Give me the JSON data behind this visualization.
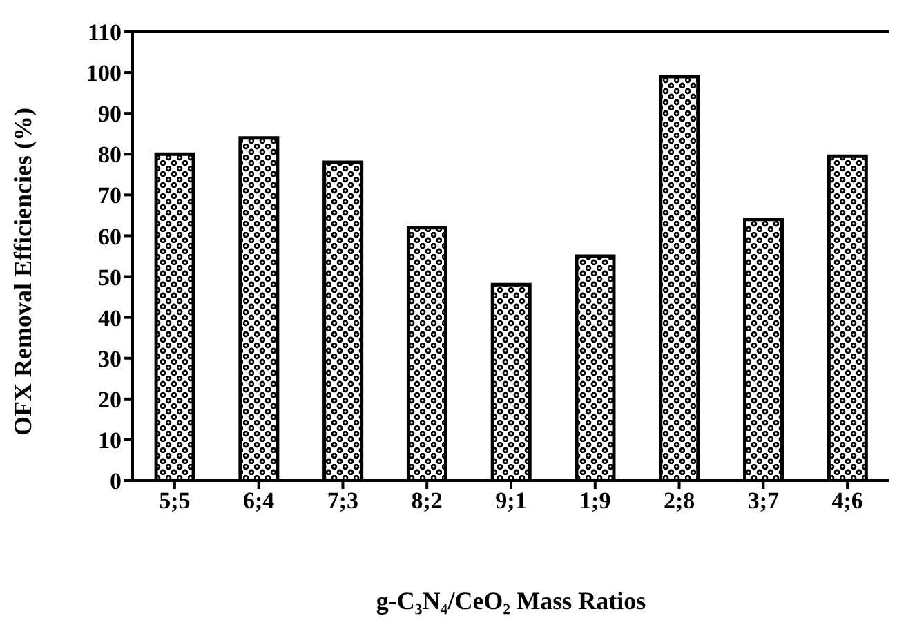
{
  "chart_data": {
    "type": "bar",
    "xlabel": "g-C₃N₄/CeO₂ Mass Ratios",
    "ylabel": "OFX Removal Efficiencies (%)",
    "categories": [
      "5;5",
      "6;4",
      "7;3",
      "8;2",
      "9;1",
      "1;9",
      "2;8",
      "3;7",
      "4;6"
    ],
    "values": [
      80,
      84,
      78,
      62,
      48,
      55,
      99,
      64,
      79.5
    ],
    "color": "#000000",
    "ylim": [
      0,
      110
    ],
    "yticks": [
      0,
      10,
      20,
      30,
      40,
      50,
      60,
      70,
      80,
      90,
      100,
      110
    ],
    "grid": false,
    "legend": false
  }
}
